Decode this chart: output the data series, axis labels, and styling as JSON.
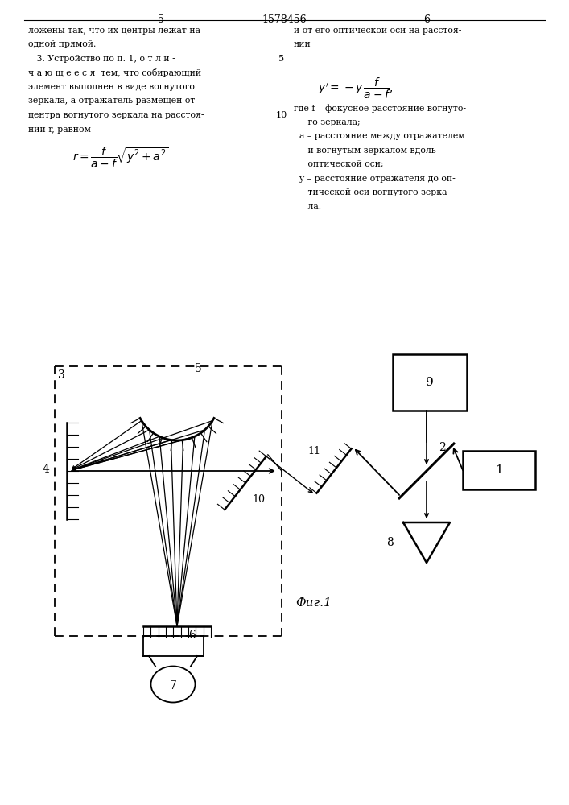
{
  "bg_color": "#ffffff",
  "line_color": "#000000",
  "text_color": "#000000",
  "page_left": "5",
  "page_right": "6",
  "title_number": "1578456",
  "fig_caption": "Фиг.1",
  "left_text": [
    "ложены так, что их центры лежат на",
    "одной прямой.",
    "   3. Устройство по п. 1, о т л и -",
    "ч а ю щ е е с я  тем, что собирающий",
    "элемент выполнен в виде вогнутого",
    "зеркала, а отражатель размещен от",
    "центра вогнутого зеркала на расстоя-",
    "нии r, равном"
  ],
  "right_text_top": [
    "и от его оптической оси на расстоя-",
    "нии"
  ],
  "right_text_after": [
    "где f – фокусное расстояние вогнуто-",
    "     го зеркала;",
    "  a – расстояние между отражателем",
    "     и вогнутым зеркалом вдоль",
    "     оптической оси;",
    "  y – расстояние отражателя до оп-",
    "     тической оси вогнутого зерка-",
    "     ла."
  ]
}
